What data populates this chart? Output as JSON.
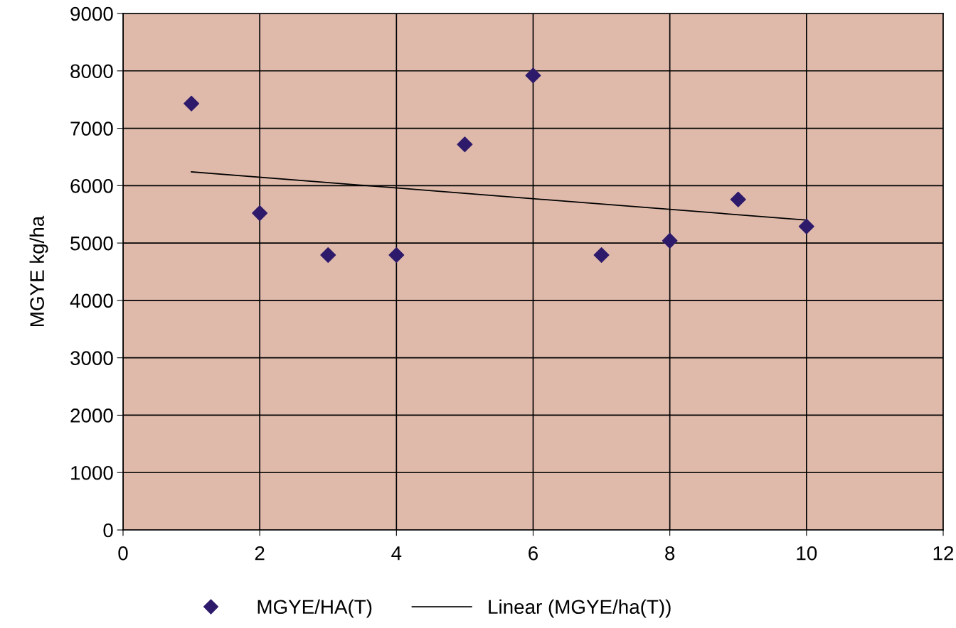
{
  "chart_data": {
    "type": "scatter",
    "ylabel": "MGYE kg/ha",
    "xlim": [
      0,
      12
    ],
    "xticks": [
      0,
      2,
      4,
      6,
      8,
      10,
      12
    ],
    "ylim": [
      0,
      9000
    ],
    "yticks": [
      0,
      1000,
      2000,
      3000,
      4000,
      5000,
      6000,
      7000,
      8000,
      9000
    ],
    "grid": true,
    "legend": "bottom",
    "marker": "diamond",
    "series": [
      {
        "name": "MGYE/HA(T)",
        "color": "#2e1a6b",
        "x": [
          1,
          2,
          3,
          4,
          5,
          6,
          7,
          8,
          9,
          10
        ],
        "values": [
          7430,
          5520,
          4790,
          4790,
          6720,
          7920,
          4790,
          5040,
          5760,
          5290
        ]
      },
      {
        "type": "line",
        "name": "Linear (MGYE/ha(T))",
        "color": "#000000",
        "marker": "none",
        "x": [
          1,
          10
        ],
        "values": [
          6240,
          5400
        ]
      }
    ]
  }
}
